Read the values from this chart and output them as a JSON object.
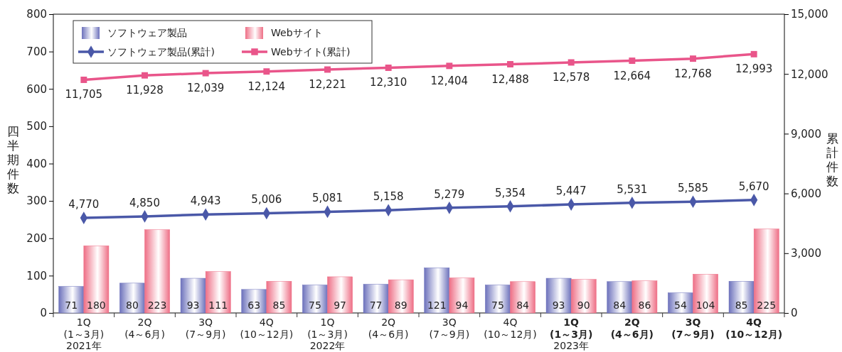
{
  "chart_data": {
    "type": "bar",
    "categories": [
      "1Q\n(1～3月)",
      "2Q\n(4～6月)",
      "3Q\n(7～9月)",
      "4Q\n(10～12月)",
      "1Q\n(1～3月)",
      "2Q\n(4～6月)",
      "3Q\n(7～9月)",
      "4Q\n(10～12月)",
      "1Q\n(1～3月)",
      "2Q\n(4～6月)",
      "3Q\n(7～9月)",
      "4Q\n(10～12月)"
    ],
    "series": [
      {
        "name": "ソフトウェア製品",
        "color": "#6d72bc",
        "values": [
          71,
          80,
          93,
          63,
          75,
          77,
          121,
          75,
          93,
          84,
          54,
          85
        ]
      },
      {
        "name": "Webサイト",
        "color": "#ee6f86",
        "values": [
          180,
          223,
          111,
          85,
          97,
          89,
          94,
          84,
          90,
          86,
          104,
          225
        ]
      },
      {
        "name": "ソフトウェア製品(累計)",
        "type": "line",
        "axis": "y2",
        "marker": "diamond",
        "color": "#4a58a8",
        "values": [
          4770,
          4850,
          4943,
          5006,
          5081,
          5158,
          5279,
          5354,
          5447,
          5531,
          5585,
          5670
        ],
        "value_labels": [
          "4,770",
          "4,850",
          "4,943",
          "5,006",
          "5,081",
          "5,158",
          "5,279",
          "5,354",
          "5,447",
          "5,531",
          "5,585",
          "5,670"
        ]
      },
      {
        "name": "Webサイト(累計)",
        "type": "line",
        "axis": "y2",
        "marker": "square",
        "color": "#e9558a",
        "values": [
          11705,
          11928,
          12039,
          12124,
          12221,
          12310,
          12404,
          12488,
          12578,
          12664,
          12768,
          12993
        ],
        "value_labels": [
          "11,705",
          "11,928",
          "12,039",
          "12,124",
          "12,221",
          "12,310",
          "12,404",
          "12,488",
          "12,578",
          "12,664",
          "12,768",
          "12,993"
        ]
      }
    ],
    "ylabel": "四半期件数",
    "y2label": "累計件数",
    "ylim": [
      0,
      800
    ],
    "yticks": [
      0,
      100,
      200,
      300,
      400,
      500,
      600,
      700,
      800
    ],
    "y2lim": [
      0,
      15000
    ],
    "y2ticks": [
      0,
      {
        "value": 3000,
        "label": "3,000"
      },
      {
        "value": 6000,
        "label": "6,000"
      },
      {
        "value": 9000,
        "label": "9,000"
      },
      {
        "value": 12000,
        "label": "12,000"
      },
      {
        "value": 15000,
        "label": "15,000"
      }
    ],
    "annotations": [
      "2021年",
      "2022年",
      "2023年"
    ],
    "data_labels": true,
    "legend": "top left",
    "grid": false,
    "line_style": "solid"
  }
}
